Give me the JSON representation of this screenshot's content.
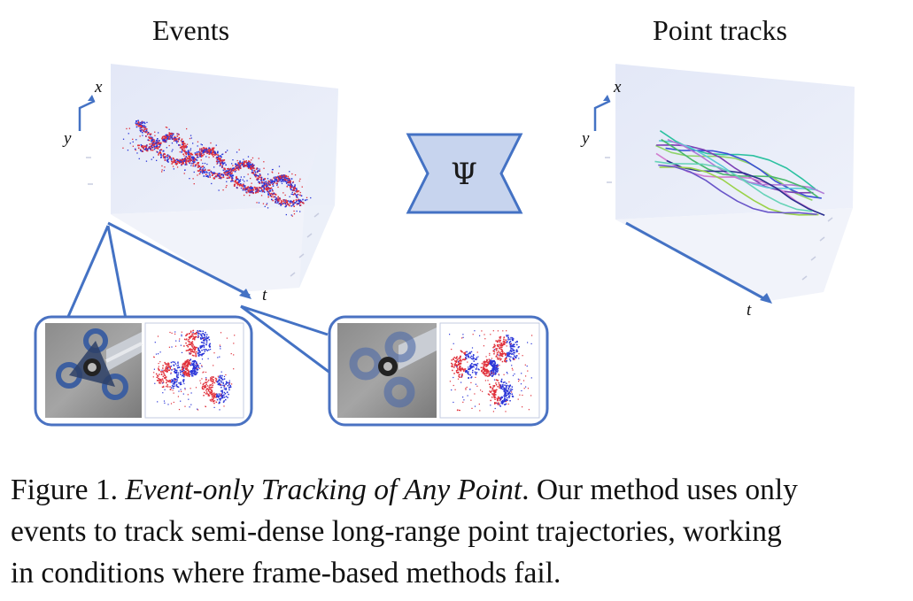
{
  "panels": {
    "events_title": "Events",
    "tracks_title": "Point tracks",
    "network_symbol": "Ψ"
  },
  "axes": {
    "x": "x",
    "y": "y",
    "t": "t"
  },
  "caption": {
    "label": "Figure 1.",
    "title": "Event-only Tracking of Any Point",
    "line1_rest": ". Our method uses only",
    "line2": "events to track semi-dense long-range point trajectories, working",
    "line3": "in conditions where frame-based methods fail."
  },
  "colors": {
    "cube_face": "#e8ecf8",
    "cube_face_light": "#f2f4fb",
    "accent_blue": "#4472c4",
    "psi_fill": "#c7d4ee",
    "inset_border": "#4a72c2",
    "event_red": "#e0303a",
    "event_blue": "#2a35d8"
  },
  "icons": [
    "axis-arrow-icon",
    "network-bowtie-icon",
    "spinner-photo-icon",
    "event-frame-icon"
  ]
}
